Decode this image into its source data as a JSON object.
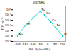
{
  "chart_data": {
    "type": "line",
    "title": "osmRu",
    "xlabel": "ΔHₙ (kJ/mol N₂)",
    "ylabel": "TOF (s⁻¹)",
    "x": [
      -200,
      -150,
      -50,
      -20,
      20,
      50,
      100
    ],
    "values": [
      1e-05,
      0.001,
      0.5,
      0.1,
      0.005,
      0.0005,
      1e-05
    ],
    "annotations": [
      "Mo",
      "Fe",
      "Ru",
      "Os",
      "Co",
      "Re",
      "Ni"
    ],
    "color": "#00cccc",
    "marker": "circle",
    "log": "y",
    "xlim": [
      -230,
      120
    ],
    "ylim": [
      1e-06,
      5
    ],
    "xticks": [
      -200,
      -150,
      -100,
      -50,
      0,
      50,
      100
    ],
    "yticks": [
      {
        "value": 1e-06,
        "label": "10⁻⁶"
      },
      {
        "value": 1e-05,
        "label": "10⁻⁵"
      },
      {
        "value": 0.0001,
        "label": "10⁻⁴"
      },
      {
        "value": 0.001,
        "label": "10⁻³"
      },
      {
        "value": 0.01,
        "label": "10⁻²"
      },
      {
        "value": 0.1,
        "label": "10⁻¹"
      },
      {
        "value": 1,
        "label": "10⁰"
      }
    ]
  }
}
